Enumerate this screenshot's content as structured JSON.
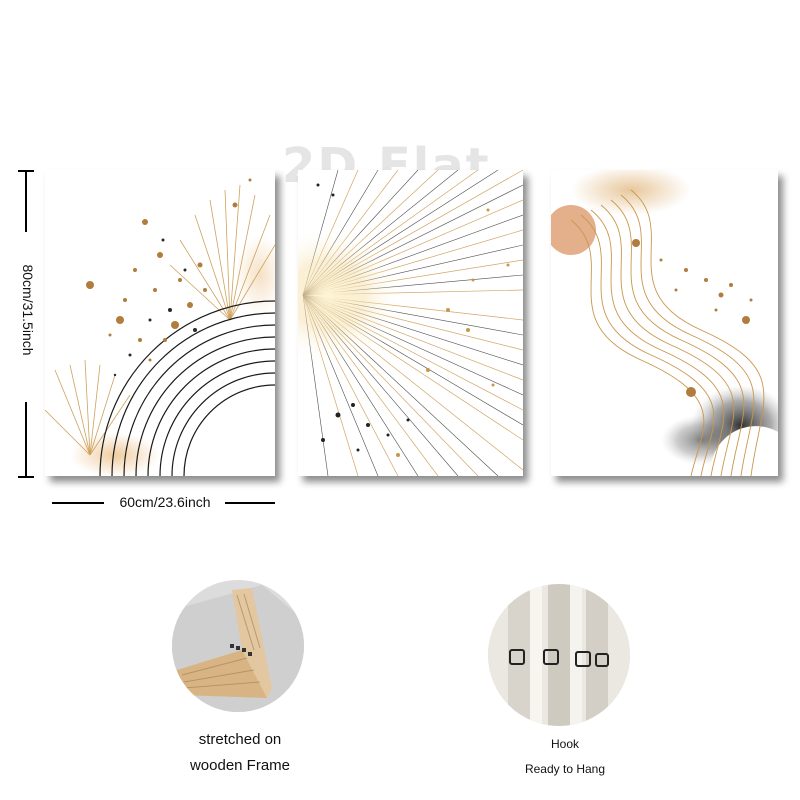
{
  "watermark": "2D Flat",
  "dimensions": {
    "height_label": "80cm/31.5inch",
    "width_label": "60cm/23.6inch"
  },
  "panels": [
    {
      "name": "left-panel-art"
    },
    {
      "name": "middle-panel-art"
    },
    {
      "name": "right-panel-art"
    }
  ],
  "details": {
    "frame": {
      "line1": "stretched on",
      "line2": "wooden Frame"
    },
    "hook": {
      "line1": "Hook",
      "line2": "Ready to Hang"
    }
  },
  "colors": {
    "gold": "#c9974c",
    "dark": "#1a1a1a",
    "wood": "#d9b88e"
  }
}
